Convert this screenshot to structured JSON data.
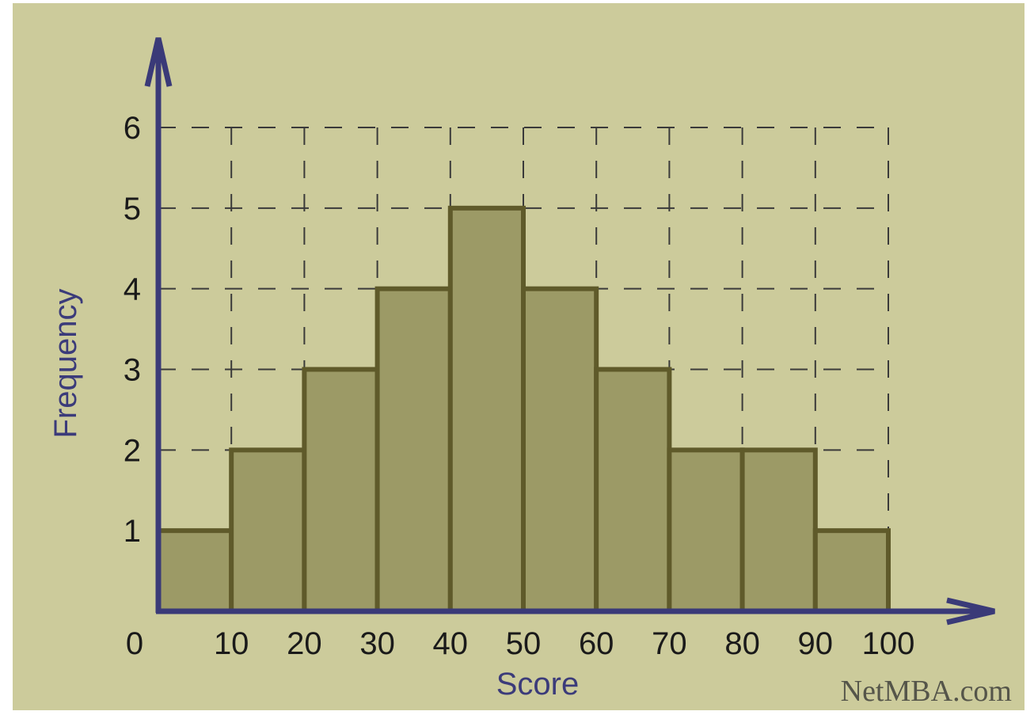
{
  "chart_data": {
    "type": "bar",
    "bins": [
      "0-10",
      "10-20",
      "20-30",
      "30-40",
      "40-50",
      "50-60",
      "60-70",
      "70-80",
      "80-90",
      "90-100"
    ],
    "values": [
      1,
      2,
      3,
      4,
      5,
      4,
      3,
      2,
      2,
      1
    ],
    "x_ticks": [
      "0",
      "10",
      "20",
      "30",
      "40",
      "50",
      "60",
      "70",
      "80",
      "90",
      "100"
    ],
    "y_ticks": [
      "1",
      "2",
      "3",
      "4",
      "5",
      "6"
    ],
    "xlabel": "Score",
    "ylabel": "Frequency",
    "xlim": [
      0,
      100
    ],
    "ylim": [
      0,
      6
    ],
    "grid": true,
    "bar_color": "#9c9a66",
    "bar_edge_color": "#5f5a2a",
    "axis_color": "#3a3a78",
    "background": "#cccb9b"
  },
  "watermark": "NetMBA.com"
}
